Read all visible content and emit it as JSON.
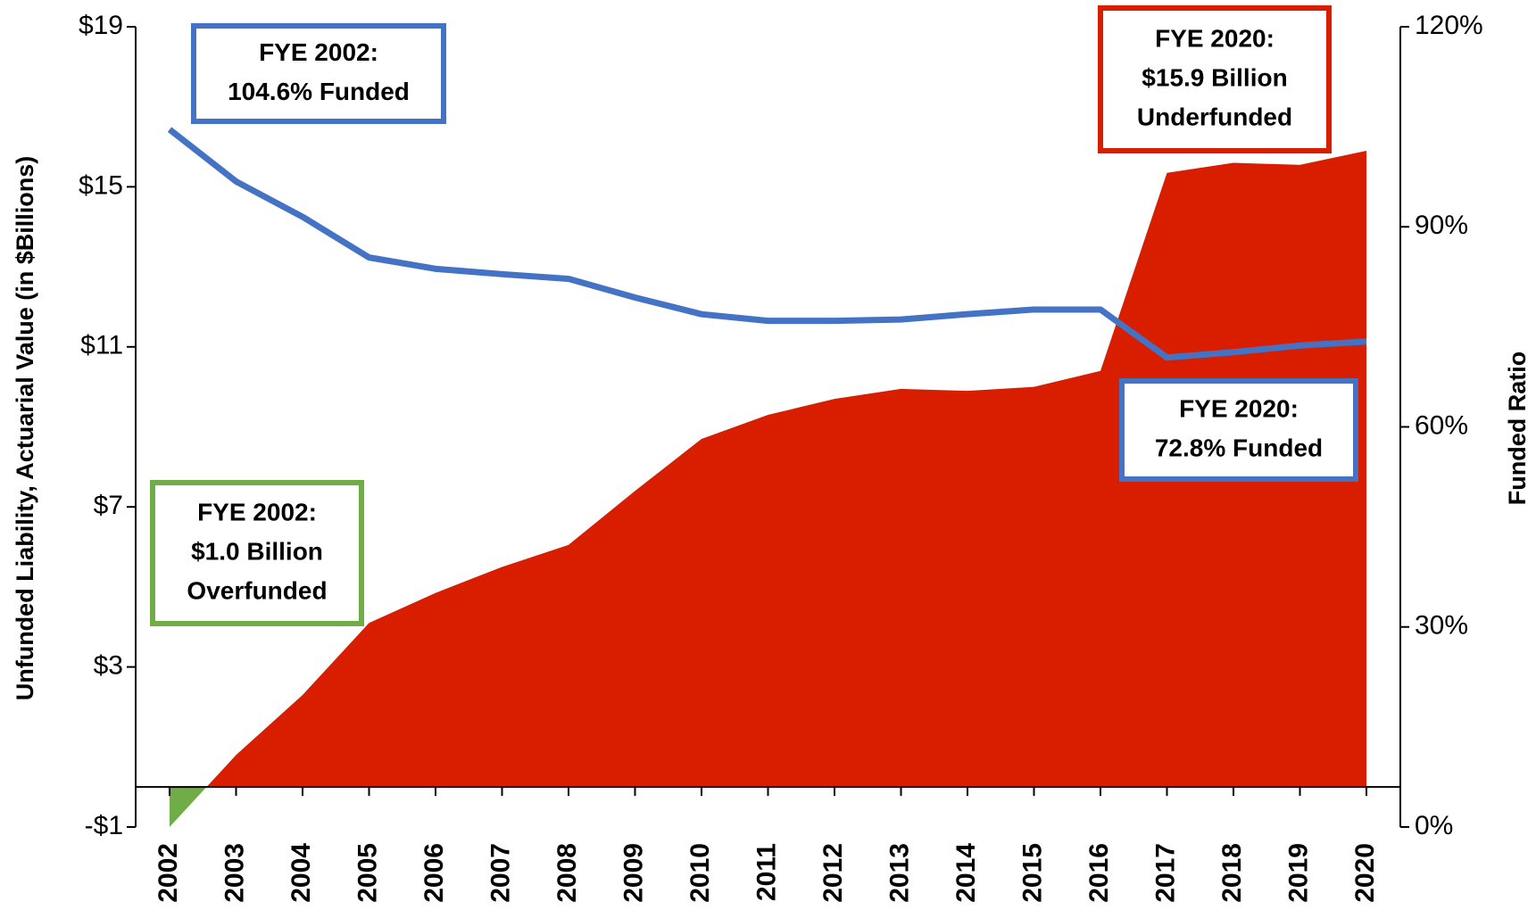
{
  "chart_data": {
    "type": "area_line",
    "ylabel": "Unfunded Liability, Actuarial Value (in $Billions)",
    "y2label": "Funded Ratio",
    "x": [
      "2002",
      "2003",
      "2004",
      "2005",
      "2006",
      "2007",
      "2008",
      "2009",
      "2010",
      "2011",
      "2012",
      "2013",
      "2014",
      "2015",
      "2016",
      "2017",
      "2018",
      "2019",
      "2020"
    ],
    "series": [
      {
        "color": "#d91e00",
        "negative_color": "#70ad47",
        "values": [
          -1.0,
          0.8,
          2.3,
          4.1,
          4.85,
          5.5,
          6.05,
          7.4,
          8.7,
          9.3,
          9.7,
          9.95,
          9.9,
          10.0,
          10.4,
          15.35,
          15.6,
          15.55,
          15.9
        ]
      },
      {
        "color": "#4472c4",
        "axis": "y2",
        "values": [
          104.6,
          96.8,
          91.5,
          85.4,
          83.7,
          82.9,
          82.2,
          79.4,
          76.9,
          75.9,
          75.9,
          76.1,
          76.9,
          77.6,
          77.6,
          70.4,
          71.2,
          72.2,
          72.8
        ]
      }
    ],
    "ylim": [
      -1,
      19
    ],
    "yticks": [
      {
        "value": -1,
        "label": "-$1"
      },
      {
        "value": 3,
        "label": "$3"
      },
      {
        "value": 7,
        "label": "$7"
      },
      {
        "value": 11,
        "label": "$11"
      },
      {
        "value": 15,
        "label": "$15"
      },
      {
        "value": 19,
        "label": "$19"
      }
    ],
    "y2lim": [
      0,
      120
    ],
    "y2ticks": [
      {
        "value": 0,
        "label": "0%"
      },
      {
        "value": 30,
        "label": "30%"
      },
      {
        "value": 60,
        "label": "60%"
      },
      {
        "value": 90,
        "label": "90%"
      },
      {
        "value": 120,
        "label": "120%"
      }
    ],
    "annotations": [
      {
        "lines": [
          "FYE 2002:",
          "104.6% Funded"
        ],
        "color": "#4472c4"
      },
      {
        "lines": [
          "FYE 2020:",
          "$15.9 Billion",
          "Underfunded"
        ],
        "color": "#d91e00"
      },
      {
        "lines": [
          "FYE 2020:",
          "72.8% Funded"
        ],
        "color": "#4472c4"
      },
      {
        "lines": [
          "FYE 2002:",
          "$1.0 Billion",
          "Overfunded"
        ],
        "color": "#70ad47"
      }
    ]
  }
}
